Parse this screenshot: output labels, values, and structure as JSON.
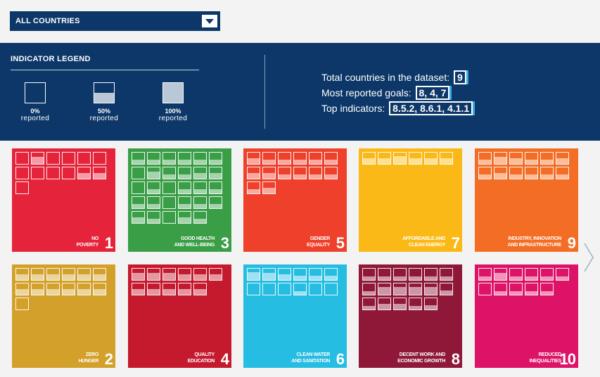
{
  "country_select": {
    "label": "ALL COUNTRIES",
    "icon": "chevron-down-icon"
  },
  "legend": {
    "title": "INDICATOR LEGEND",
    "items": [
      {
        "pct": "0%",
        "label": "reported",
        "fill": 0
      },
      {
        "pct": "50%",
        "label": "reported",
        "fill": 0.5
      },
      {
        "pct": "100%",
        "label": "reported",
        "fill": 1
      }
    ]
  },
  "stats": [
    {
      "label": "Total countries in the dataset:",
      "value": "9"
    },
    {
      "label": "Most reported goals:",
      "value": "8, 4, 7"
    },
    {
      "label": "Top indicators:",
      "value": "8.5.2, 8.6.1, 4.1.1"
    }
  ],
  "goals": [
    {
      "name": "No\npoverty",
      "number": "1",
      "color": "#e5243b",
      "cells": [
        0,
        0.6,
        0,
        0,
        0,
        0,
        0,
        0,
        0,
        0,
        0.5,
        0.5,
        0
      ]
    },
    {
      "name": "Good health\nand well-being",
      "number": "3",
      "color": "#3a9e47",
      "cells": [
        0.4,
        0.4,
        0.4,
        0.4,
        0.4,
        0.4,
        0,
        0.6,
        0.4,
        0.4,
        0.5,
        0.5,
        0,
        0.4,
        0,
        0.4,
        0.4,
        0.4,
        0.4,
        0.4,
        0,
        0.4,
        0.4,
        0.4,
        0.5,
        0.4,
        0,
        0.5,
        0.4
      ]
    },
    {
      "name": "Gender\nequality",
      "number": "5",
      "color": "#ef402b",
      "cells": [
        0.5,
        0.4,
        0.4,
        0.4,
        0.4,
        0.4,
        0.5,
        0.5,
        0.4,
        0.4,
        0.4,
        0.4,
        0.4,
        0.5
      ]
    },
    {
      "name": "Affordable and\nclean energy",
      "number": "7",
      "color": "#fbb917",
      "cells": [
        0.5,
        0.5,
        0.7,
        0.5,
        0.5,
        0.5
      ]
    },
    {
      "name": "Industry, innovation\nand infrastructure",
      "number": "9",
      "color": "#f36d25",
      "cells": [
        0.4,
        0.6,
        0.5,
        0.4,
        0.4,
        0.5,
        0.4,
        0.5,
        0.4,
        0.4,
        0.4,
        0.4
      ]
    },
    {
      "name": "Zero\nhunger",
      "number": "2",
      "color": "#d3a029",
      "cells": [
        0.5,
        0.5,
        0.5,
        0.5,
        0.5,
        0.5,
        0.5,
        0.5,
        0.5,
        0.5,
        0.5,
        0.5,
        0
      ]
    },
    {
      "name": "Quality\neducation",
      "number": "4",
      "color": "#c5192d",
      "cells": [
        0.6,
        0.6,
        0.6,
        0.5,
        0.5,
        0.5,
        0.5,
        0.5,
        0.5,
        0.5,
        0.5
      ]
    },
    {
      "name": "Clean water\nand sanitation",
      "number": "6",
      "color": "#26bde2",
      "cells": [
        0.7,
        0.6,
        0.5,
        0.4,
        0.4,
        0.4,
        0,
        0,
        0,
        0.3,
        0,
        0
      ]
    },
    {
      "name": "Decent work and\neconomic growth",
      "number": "8",
      "color": "#8f1838",
      "cells": [
        0.3,
        0.3,
        0.3,
        0.3,
        0.3,
        0.3,
        0.3,
        0.7,
        0.7,
        0.7,
        0.7,
        0.4,
        0.3,
        0.5,
        0.5,
        0.3,
        0.4
      ]
    },
    {
      "name": "Reduced\ninequalities",
      "number": "10",
      "color": "#dd1367",
      "cells": [
        0.3,
        0.6,
        0.3,
        0.3,
        0.3,
        0.3,
        0,
        0.3,
        0.3,
        0.3,
        0.3
      ]
    }
  ],
  "next_arrow": {
    "icon": "chevron-right-icon"
  }
}
